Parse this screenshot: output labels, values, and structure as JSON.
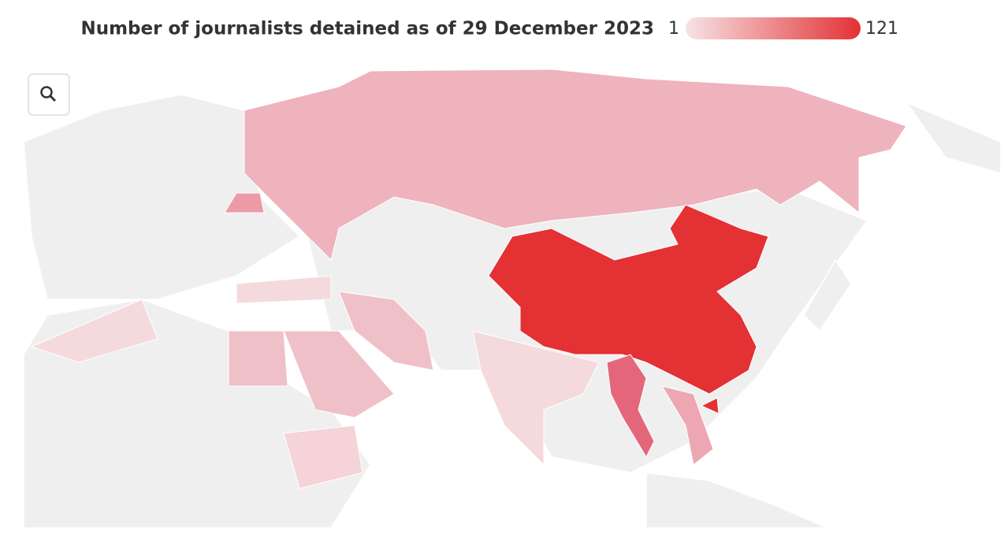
{
  "legend": {
    "title": "Number of journalists detained as of 29 December 2023",
    "min": 1,
    "max": 121,
    "colors": [
      "#f7e3e5",
      "#e33134"
    ]
  }
}
